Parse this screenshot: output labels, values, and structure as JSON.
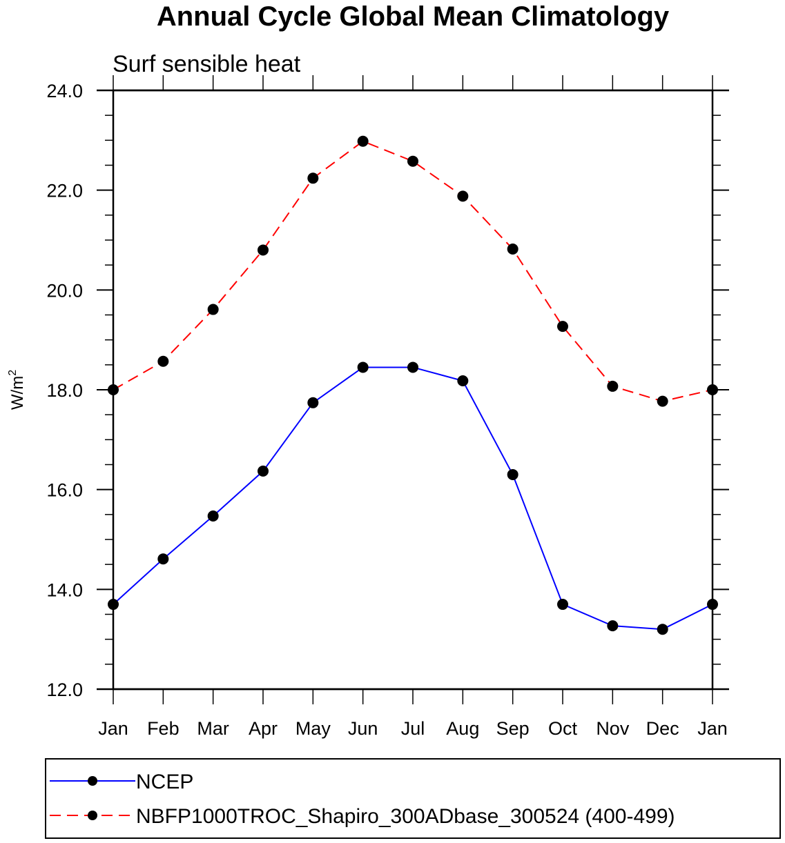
{
  "chart_data": {
    "type": "line",
    "title": "Annual Cycle Global Mean Climatology",
    "subtitle": "Surf sensible heat",
    "xlabel": "",
    "ylabel": "W/m",
    "ylabel_superscript": "2",
    "categories": [
      "Jan",
      "Feb",
      "Mar",
      "Apr",
      "May",
      "Jun",
      "Jul",
      "Aug",
      "Sep",
      "Oct",
      "Nov",
      "Dec",
      "Jan"
    ],
    "ylim": [
      12.0,
      24.0
    ],
    "yticks": [
      12.0,
      14.0,
      16.0,
      18.0,
      20.0,
      22.0,
      24.0
    ],
    "ytick_labels": [
      "12.0",
      "14.0",
      "16.0",
      "18.0",
      "20.0",
      "22.0",
      "24.0"
    ],
    "y_minor_step": 0.5,
    "grid": false,
    "legend_position": "bottom",
    "series": [
      {
        "name": "NCEP",
        "color": "#0000ff",
        "line_style": "solid",
        "marker": "filled-circle",
        "marker_color": "#000000",
        "values": [
          13.7,
          14.61,
          15.47,
          16.37,
          17.74,
          18.45,
          18.45,
          18.18,
          16.3,
          13.7,
          13.27,
          13.2,
          13.7
        ]
      },
      {
        "name": "NBFP1000TROC_Shapiro_300ADbase_300524 (400-499)",
        "color": "#ff0000",
        "line_style": "dashed",
        "marker": "filled-circle",
        "marker_color": "#000000",
        "values": [
          18.0,
          18.57,
          19.61,
          20.8,
          22.24,
          22.98,
          22.58,
          21.88,
          20.82,
          19.27,
          18.07,
          17.77,
          18.0
        ]
      }
    ]
  }
}
